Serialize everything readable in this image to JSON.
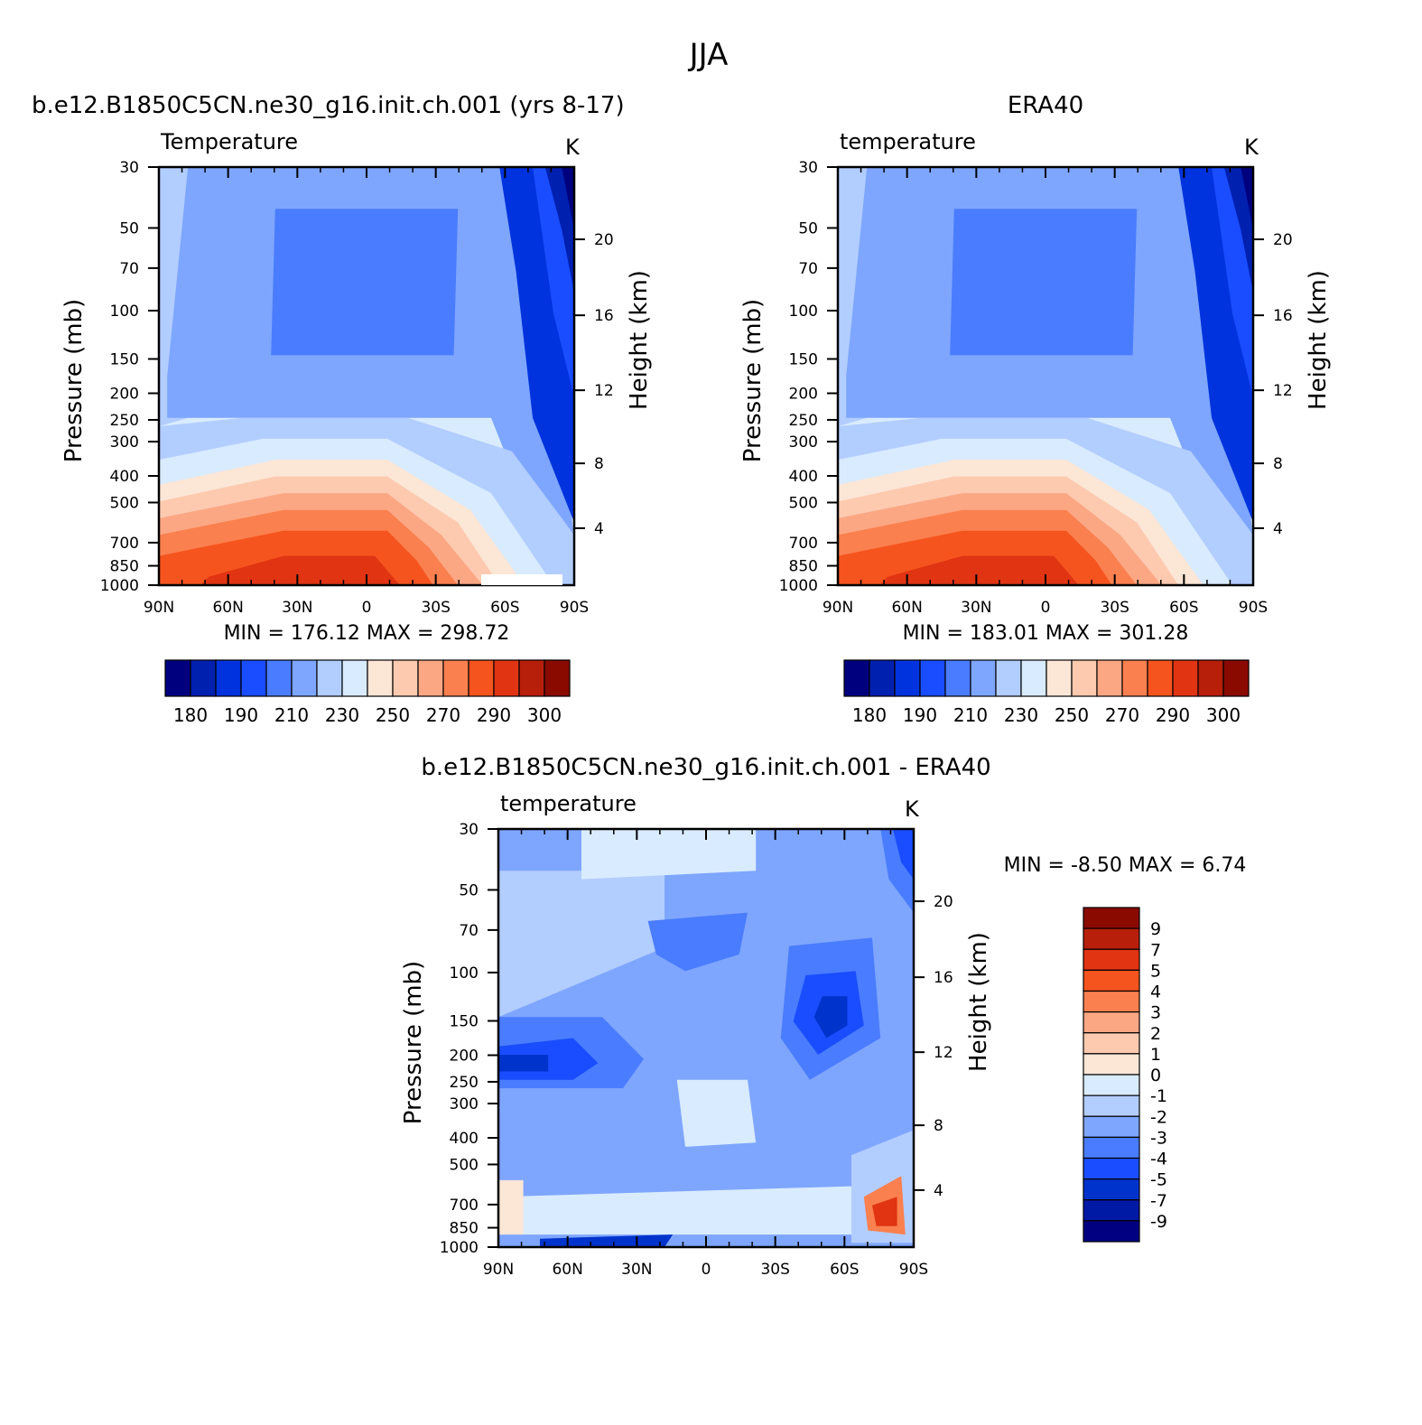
{
  "figure": {
    "title": "JJA"
  },
  "palette": {
    "abs": [
      "#00007f",
      "#0020b0",
      "#0033dd",
      "#1a4dff",
      "#4a7cff",
      "#7ea6ff",
      "#b2cdff",
      "#d9ebff",
      "#fce6d6",
      "#fdcab0",
      "#fca784",
      "#fa804f",
      "#f5541e",
      "#e03412",
      "#b81f0a",
      "#8a0a00"
    ],
    "diff": [
      "#000080",
      "#001aa6",
      "#0033cc",
      "#1a4dff",
      "#4a7cff",
      "#7ea6ff",
      "#b2cdff",
      "#d9ebff",
      "#fce6d6",
      "#fdcab0",
      "#fca784",
      "#fa804f",
      "#f5541e",
      "#e03412",
      "#b81f0a",
      "#8a0a00"
    ]
  },
  "chart_data": [
    {
      "id": "model",
      "type": "contour",
      "title": "b.e12.B1850C5CN.ne30_g16.init.ch.001 (yrs 8-17)",
      "left_label": "Temperature",
      "units": "K",
      "ylabel": "Pressure (mb)",
      "ylabel_right": "Height (km)",
      "x_ticks": [
        "90N",
        "60N",
        "30N",
        "0",
        "30S",
        "60S",
        "90S"
      ],
      "y_ticks": [
        "30",
        "50",
        "70",
        "100",
        "150",
        "200",
        "250",
        "300",
        "400",
        "500",
        "700",
        "850",
        "1000"
      ],
      "y_right_ticks": [
        "20",
        "16",
        "12",
        "8",
        "4"
      ],
      "min_max_text": "MIN = 176.12 MAX = 298.72",
      "min": 176.12,
      "max": 298.72,
      "colorbar_labels": [
        "180",
        "190",
        "210",
        "230",
        "250",
        "270",
        "290",
        "300"
      ],
      "region_levels": [
        6,
        5,
        4,
        4,
        5,
        6,
        7,
        8,
        9,
        10,
        11,
        12,
        13,
        2,
        3,
        1,
        0
      ]
    },
    {
      "id": "obs",
      "type": "contour",
      "title": "ERA40",
      "left_label": "temperature",
      "units": "K",
      "ylabel": "Pressure (mb)",
      "ylabel_right": "Height (km)",
      "x_ticks": [
        "90N",
        "60N",
        "30N",
        "0",
        "30S",
        "60S",
        "90S"
      ],
      "y_ticks": [
        "30",
        "50",
        "70",
        "100",
        "150",
        "200",
        "250",
        "300",
        "400",
        "500",
        "700",
        "850",
        "1000"
      ],
      "y_right_ticks": [
        "20",
        "16",
        "12",
        "8",
        "4"
      ],
      "min_max_text": "MIN = 183.01 MAX = 301.28",
      "min": 183.01,
      "max": 301.28,
      "colorbar_labels": [
        "180",
        "190",
        "210",
        "230",
        "250",
        "270",
        "290",
        "300"
      ],
      "region_levels": [
        6,
        5,
        4,
        4,
        5,
        6,
        7,
        8,
        9,
        10,
        11,
        12,
        13,
        2,
        3,
        1,
        0
      ]
    },
    {
      "id": "diff",
      "type": "contour",
      "title": "b.e12.B1850C5CN.ne30_g16.init.ch.001 - ERA40",
      "left_label": "temperature",
      "units": "K",
      "ylabel": "Pressure (mb)",
      "ylabel_right": "Height (km)",
      "x_ticks": [
        "90N",
        "60N",
        "30N",
        "0",
        "30S",
        "60S",
        "90S"
      ],
      "y_ticks": [
        "30",
        "50",
        "70",
        "100",
        "150",
        "200",
        "250",
        "300",
        "400",
        "500",
        "700",
        "850",
        "1000"
      ],
      "y_right_ticks": [
        "20",
        "16",
        "12",
        "8",
        "4"
      ],
      "min_max_text": "MIN = -8.50 MAX = 6.74",
      "min": -8.5,
      "max": 6.74,
      "colorbar_labels": [
        "9",
        "7",
        "5",
        "4",
        "3",
        "2",
        "1",
        "0",
        "-1",
        "-2",
        "-3",
        "-4",
        "-5",
        "-7",
        "-9"
      ]
    }
  ]
}
